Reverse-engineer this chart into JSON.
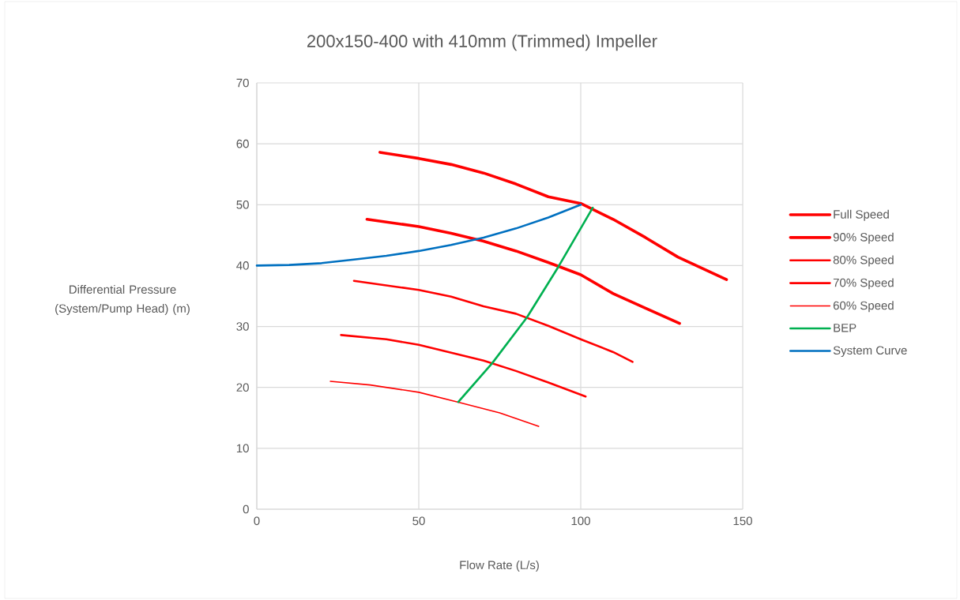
{
  "chart_data": {
    "type": "line",
    "title": "200x150-400 with 410mm (Trimmed) Impeller",
    "xlabel": "Flow Rate (L/s)",
    "ylabel": "Differential Pressure (System/Pump Head) (m)",
    "xlim": [
      0,
      150
    ],
    "xticks": [
      0,
      50,
      100,
      150
    ],
    "ylim": [
      0,
      70
    ],
    "yticks": [
      0,
      10,
      20,
      30,
      40,
      50,
      60,
      70
    ],
    "grid": true,
    "legend": "right",
    "marker": "none",
    "line_style": "solid",
    "series": [
      {
        "name": "Full Speed",
        "color": "#ff0000",
        "x": [
          38,
          50,
          60,
          70,
          80,
          90,
          100,
          110,
          120,
          130,
          145
        ],
        "values": [
          58.6,
          57.6,
          56.6,
          55.2,
          53.4,
          51.3,
          50.2,
          47.6,
          44.6,
          41.4,
          37.7
        ]
      },
      {
        "name": "90% Speed",
        "color": "#ff0000",
        "x": [
          34,
          50,
          60,
          70,
          80,
          90,
          100,
          110,
          120,
          130.5
        ],
        "values": [
          47.6,
          46.4,
          45.3,
          44.0,
          42.4,
          40.5,
          38.5,
          35.4,
          33.0,
          30.5
        ]
      },
      {
        "name": "80% Speed",
        "color": "#ff0000",
        "x": [
          30,
          50,
          60,
          70,
          80,
          90,
          100,
          110,
          116
        ],
        "values": [
          37.5,
          36.0,
          34.9,
          33.3,
          32.1,
          30.1,
          27.9,
          25.8,
          24.2
        ]
      },
      {
        "name": "70% Speed",
        "color": "#ff0000",
        "x": [
          26,
          40,
          50,
          60,
          70,
          80,
          90,
          101.5
        ],
        "values": [
          28.6,
          27.9,
          27.0,
          25.7,
          24.4,
          22.7,
          20.8,
          18.5
        ]
      },
      {
        "name": "60% Speed",
        "color": "#ff0000",
        "x": [
          22.7,
          35,
          50,
          62,
          75,
          87
        ],
        "values": [
          21.0,
          20.4,
          19.2,
          17.6,
          15.8,
          13.6
        ]
      },
      {
        "name": "BEP",
        "color": "#00b050",
        "x": [
          62.2,
          72.7,
          83.4,
          93.2,
          103.7
        ],
        "values": [
          17.6,
          24.0,
          31.5,
          39.9,
          49.5
        ]
      },
      {
        "name": "System Curve",
        "color": "#0070c0",
        "x": [
          0,
          10,
          20,
          30,
          40,
          50,
          60,
          70,
          80,
          90,
          100
        ],
        "values": [
          40.0,
          40.1,
          40.4,
          41.0,
          41.6,
          42.4,
          43.4,
          44.6,
          46.1,
          47.9,
          50.0
        ]
      }
    ]
  }
}
